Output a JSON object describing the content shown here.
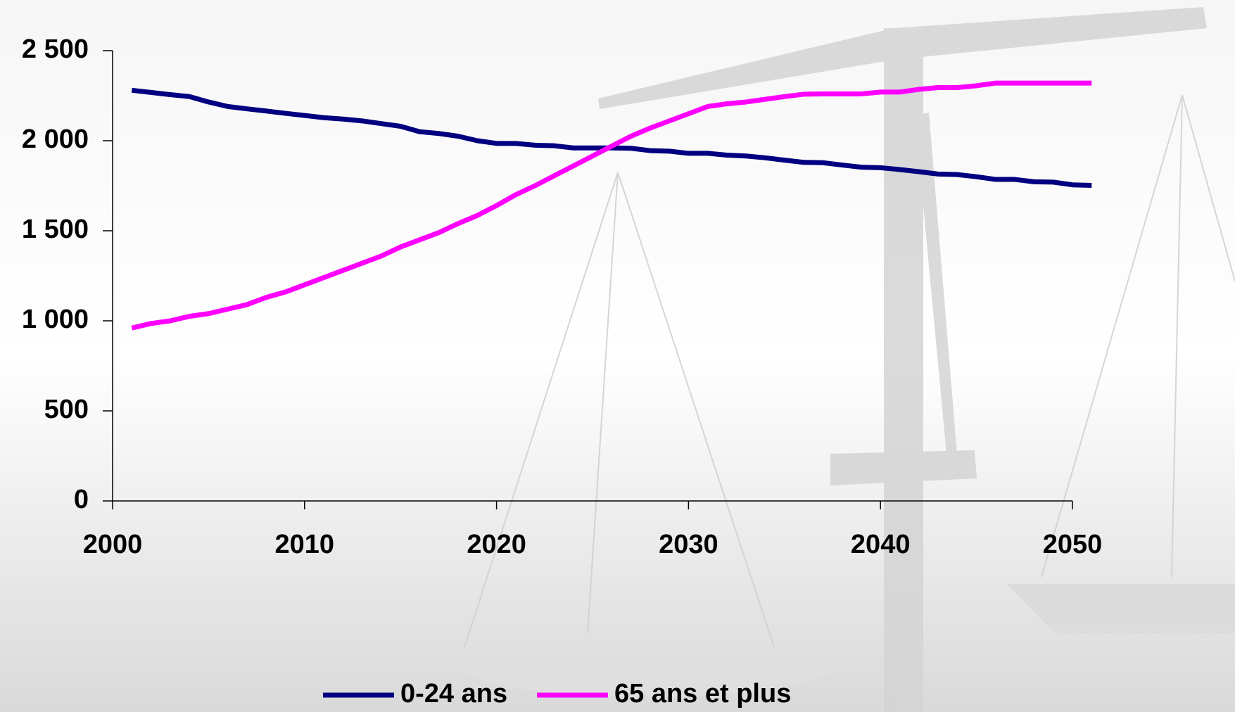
{
  "chart_data": {
    "type": "line",
    "x": [
      2001,
      2002,
      2003,
      2004,
      2005,
      2006,
      2007,
      2008,
      2009,
      2010,
      2011,
      2012,
      2013,
      2014,
      2015,
      2016,
      2017,
      2018,
      2019,
      2020,
      2021,
      2022,
      2023,
      2024,
      2025,
      2026,
      2027,
      2028,
      2029,
      2030,
      2031,
      2032,
      2033,
      2034,
      2035,
      2036,
      2037,
      2038,
      2039,
      2040,
      2041,
      2042,
      2043,
      2044,
      2045,
      2046,
      2047,
      2048,
      2049,
      2050,
      2051
    ],
    "series": [
      {
        "name": "0-24 ans",
        "color": "#000080",
        "values": [
          2280,
          2268,
          2256,
          2245,
          2215,
          2190,
          2177,
          2165,
          2152,
          2140,
          2128,
          2120,
          2110,
          2095,
          2080,
          2050,
          2040,
          2025,
          2000,
          1985,
          1985,
          1975,
          1972,
          1960,
          1960,
          1960,
          1958,
          1945,
          1942,
          1930,
          1930,
          1920,
          1915,
          1905,
          1892,
          1880,
          1878,
          1865,
          1853,
          1850,
          1840,
          1828,
          1815,
          1812,
          1800,
          1785,
          1785,
          1772,
          1770,
          1755,
          1752
        ]
      },
      {
        "name": "65 ans et plus",
        "color": "#ff00ff",
        "values": [
          960,
          985,
          1000,
          1025,
          1040,
          1065,
          1090,
          1130,
          1160,
          1200,
          1240,
          1280,
          1320,
          1360,
          1410,
          1450,
          1490,
          1540,
          1585,
          1640,
          1700,
          1750,
          1805,
          1860,
          1915,
          1970,
          2025,
          2070,
          2110,
          2150,
          2190,
          2205,
          2215,
          2230,
          2245,
          2258,
          2260,
          2260,
          2260,
          2270,
          2270,
          2285,
          2295,
          2295,
          2305,
          2320,
          2320,
          2320,
          2320,
          2320,
          2320
        ]
      }
    ],
    "xlim": [
      2000,
      2050
    ],
    "xticks": [
      2000,
      2010,
      2020,
      2030,
      2040,
      2050
    ],
    "ylim": [
      0,
      2500
    ],
    "yticks": [
      0,
      500,
      {
        "value": 1000,
        "label": "1 000"
      },
      {
        "value": 1500,
        "label": "1 500"
      },
      {
        "value": 2000,
        "label": "2 000"
      },
      {
        "value": 2500,
        "label": "2 500"
      }
    ],
    "legend": "bottom"
  }
}
